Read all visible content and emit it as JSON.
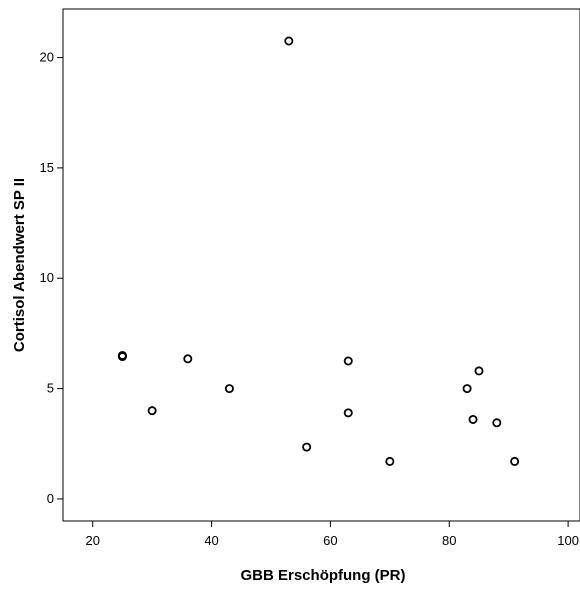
{
  "chart_data": {
    "type": "scatter",
    "title": "",
    "xlabel": "GBB Erschöpfung (PR)",
    "ylabel": "Cortisol Abendwert SP II",
    "xlim": [
      15,
      102
    ],
    "ylim": [
      -1,
      22.2
    ],
    "xticks": [
      20,
      40,
      60,
      80,
      100
    ],
    "yticks": [
      0,
      5,
      10,
      15,
      20
    ],
    "grid": false,
    "legend": "none",
    "marker": "open-circle",
    "points": [
      {
        "x": 53,
        "y": 20.75
      },
      {
        "x": 25,
        "y": 6.5
      },
      {
        "x": 25,
        "y": 6.45
      },
      {
        "x": 36,
        "y": 6.35
      },
      {
        "x": 30,
        "y": 4.0
      },
      {
        "x": 43,
        "y": 5.0
      },
      {
        "x": 63,
        "y": 6.25
      },
      {
        "x": 63,
        "y": 3.9
      },
      {
        "x": 56,
        "y": 2.35
      },
      {
        "x": 70,
        "y": 1.7
      },
      {
        "x": 85,
        "y": 5.8
      },
      {
        "x": 83,
        "y": 5.0
      },
      {
        "x": 84,
        "y": 3.6
      },
      {
        "x": 88,
        "y": 3.45
      },
      {
        "x": 91,
        "y": 1.7
      }
    ],
    "colors": {
      "marker_stroke": "#000000",
      "axis": "#000000",
      "background": "#ffffff"
    }
  }
}
